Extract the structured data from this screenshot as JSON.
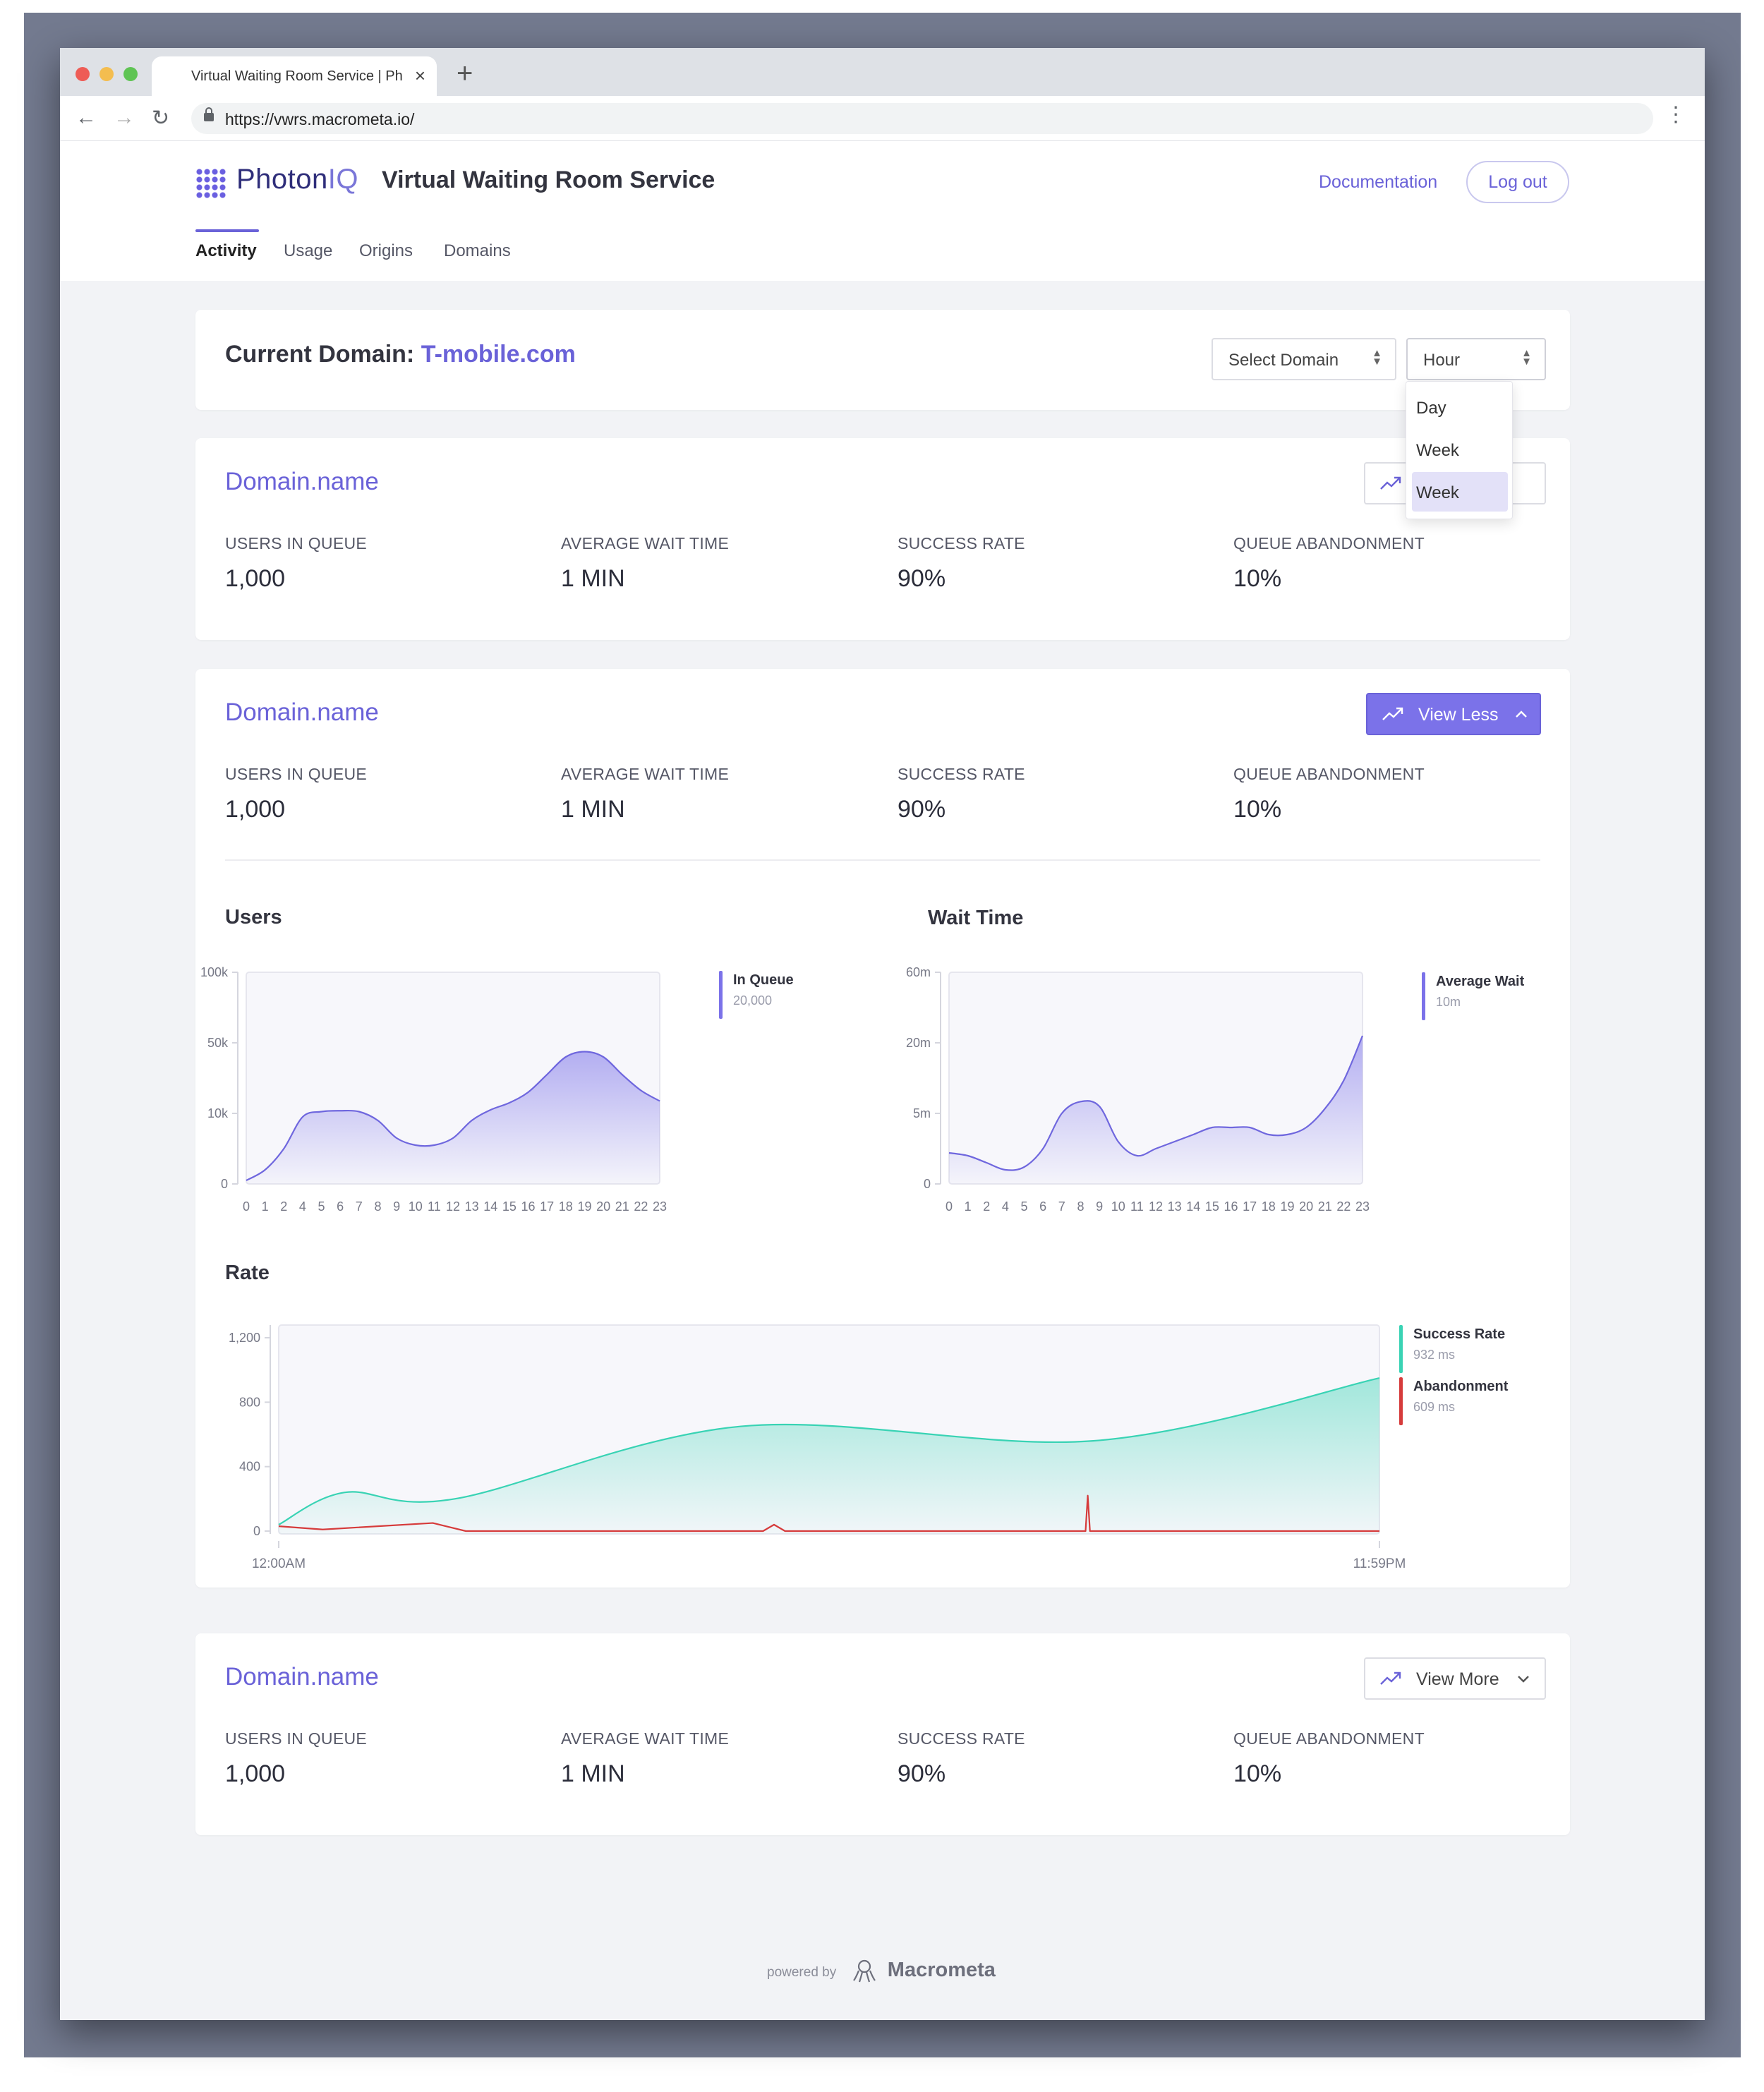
{
  "browser": {
    "tab_title": "Virtual Waiting Room Service | PhotonIQ",
    "url": "https://vwrs.macrometa.io/"
  },
  "header": {
    "brand_main": "Photon",
    "brand_iq": "IQ",
    "title": "Virtual Waiting Room Service",
    "documentation": "Documentation",
    "logout": "Log out",
    "tabs": [
      "Activity",
      "Usage",
      "Origins",
      "Domains"
    ]
  },
  "current": {
    "label": "Current Domain:",
    "domain": "T-mobile.com",
    "select_domain": "Select Domain",
    "period": "Hour",
    "period_options": [
      "Day",
      "Week",
      "Week"
    ]
  },
  "stat_labels": [
    "USERS IN QUEUE",
    "AVERAGE WAIT TIME",
    "SUCCESS RATE",
    "QUEUE ABANDONMENT"
  ],
  "domains": [
    {
      "name": "Domain.name",
      "values": [
        "1,000",
        "1 MIN",
        "90%",
        "10%"
      ],
      "button": ""
    },
    {
      "name": "Domain.name",
      "values": [
        "1,000",
        "1 MIN",
        "90%",
        "10%"
      ],
      "button": "View Less"
    },
    {
      "name": "Domain.name",
      "values": [
        "1,000",
        "1 MIN",
        "90%",
        "10%"
      ],
      "button": "View More"
    }
  ],
  "colors": {
    "accent": "#6a62d8",
    "users": "#7b72e9",
    "success": "#39d3b4",
    "abandon": "#d63b3b"
  },
  "chart_data": [
    {
      "type": "area",
      "title": "Users",
      "x": [
        0,
        1,
        2,
        4,
        5,
        6,
        7,
        8,
        9,
        10,
        11,
        12,
        13,
        14,
        15,
        16,
        17,
        18,
        19,
        20,
        21,
        22,
        23
      ],
      "x_tick_labels": [
        "0",
        "1",
        "2",
        "4",
        "5",
        "6",
        "7",
        "8",
        "9",
        "10",
        "11",
        "12",
        "13",
        "14",
        "15",
        "16",
        "17",
        "18",
        "19",
        "20",
        "21",
        "22",
        "23"
      ],
      "y_tick_labels": [
        "100k",
        "50k",
        "10k",
        "0"
      ],
      "y_scale": "nonlinear",
      "series": [
        {
          "name": "In Queue",
          "legend_value": "20,000",
          "values": [
            500,
            2000,
            5000,
            9500,
            11000,
            11500,
            11000,
            9000,
            6500,
            5500,
            5500,
            6500,
            9000,
            12000,
            16000,
            22000,
            32000,
            42000,
            45000,
            42000,
            32000,
            23000,
            17000
          ]
        }
      ],
      "legend": "right"
    },
    {
      "type": "area",
      "title": "Wait Time",
      "x": [
        0,
        1,
        2,
        4,
        5,
        6,
        7,
        8,
        9,
        10,
        11,
        12,
        13,
        14,
        15,
        16,
        17,
        18,
        19,
        20,
        21,
        22,
        23
      ],
      "x_tick_labels": [
        "0",
        "1",
        "2",
        "4",
        "5",
        "6",
        "7",
        "8",
        "9",
        "10",
        "11",
        "12",
        "13",
        "14",
        "15",
        "16",
        "17",
        "18",
        "19",
        "20",
        "21",
        "22",
        "23"
      ],
      "y_tick_labels": [
        "60m",
        "20m",
        "5m",
        "0"
      ],
      "y_scale": "nonlinear",
      "series": [
        {
          "name": "Average Wait",
          "legend_value": "10m",
          "values": [
            2.2,
            2.0,
            1.5,
            1.0,
            1.2,
            2.5,
            5.0,
            7.5,
            6.5,
            3.0,
            2.0,
            2.5,
            3.0,
            3.5,
            4.0,
            4.0,
            4.0,
            3.5,
            3.5,
            4.0,
            6.0,
            12.0,
            24.0
          ]
        }
      ],
      "legend": "right"
    },
    {
      "type": "area",
      "title": "Rate",
      "x_tick_labels": [
        "12:00AM",
        "11:59PM"
      ],
      "y_tick_labels": [
        "1,200",
        "800",
        "400",
        "0"
      ],
      "ylim": [
        0,
        1200
      ],
      "series": [
        {
          "name": "Success Rate",
          "legend_value": "932 ms",
          "x": [
            0,
            0.06,
            0.16,
            0.42,
            0.74,
            1.0
          ],
          "values": [
            40,
            240,
            200,
            650,
            560,
            950
          ]
        },
        {
          "name": "Abandonment",
          "legend_value": "609 ms",
          "x": [
            0,
            0.04,
            0.14,
            0.17,
            0.44,
            0.45,
            0.46,
            0.733,
            0.735,
            0.737,
            1.0
          ],
          "values": [
            30,
            10,
            50,
            0,
            0,
            40,
            0,
            0,
            220,
            0,
            0
          ]
        }
      ],
      "legend": "right"
    }
  ],
  "footer": {
    "powered_by": "powered by",
    "brand": "Macrometa"
  }
}
